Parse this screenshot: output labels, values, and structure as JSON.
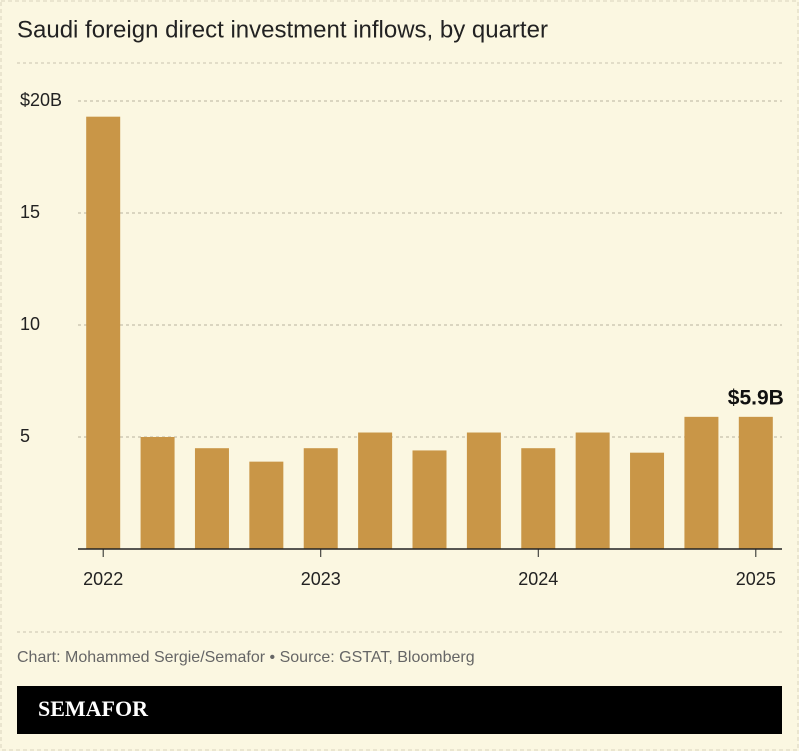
{
  "chart_data": {
    "type": "bar",
    "title": "Saudi foreign direct investment inflows, by quarter",
    "categories": [
      "2022",
      null,
      null,
      null,
      "2023",
      null,
      null,
      null,
      "2024",
      null,
      null,
      null,
      "2025"
    ],
    "values": [
      19.3,
      5.0,
      4.5,
      3.9,
      4.5,
      5.2,
      4.4,
      5.2,
      4.5,
      5.2,
      4.3,
      5.9,
      5.9
    ],
    "value_labels": [
      null,
      null,
      null,
      null,
      null,
      null,
      null,
      null,
      null,
      null,
      null,
      null,
      "$5.9B"
    ],
    "color": "#c99647",
    "ylim": [
      0,
      20
    ],
    "yticks": [
      5,
      10,
      15,
      {
        "value": 20,
        "label": "$20B"
      }
    ],
    "grid": true,
    "source": "Chart: Mohammed Sergie/Semafor • Source: GSTAT, Bloomberg",
    "brand": "SEMAFOR"
  }
}
